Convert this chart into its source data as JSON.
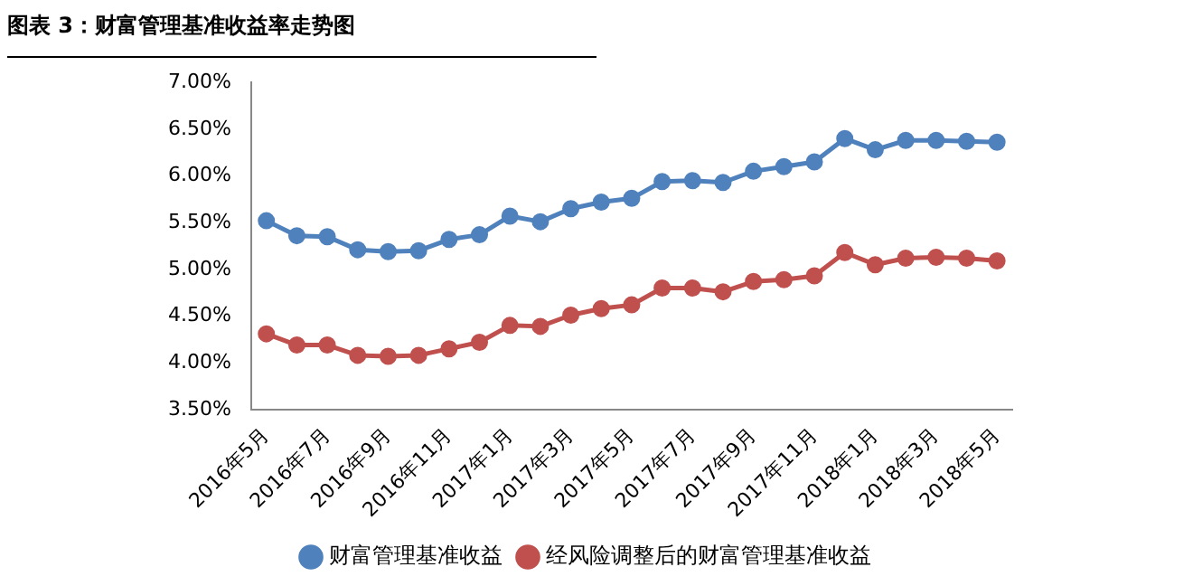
{
  "chart_data": {
    "type": "line",
    "title": "图表 3：财富管理基准收益率走势图",
    "categories": [
      "2016年5月",
      null,
      "2016年7月",
      null,
      "2016年9月",
      null,
      "2016年11月",
      null,
      "2017年1月",
      null,
      "2017年3月",
      null,
      "2017年5月",
      null,
      "2017年7月",
      null,
      "2017年9月",
      null,
      "2017年11月",
      null,
      "2018年1月",
      null,
      "2018年3月",
      null,
      "2018年5月"
    ],
    "series": [
      {
        "name": "财富管理基准收益",
        "color": "#4f81bd",
        "values": [
          5.52,
          5.36,
          5.35,
          5.21,
          5.19,
          5.2,
          5.32,
          5.37,
          5.57,
          5.51,
          5.65,
          5.72,
          5.76,
          5.94,
          5.95,
          5.93,
          6.05,
          6.1,
          6.15,
          6.4,
          6.28,
          6.38,
          6.38,
          6.37,
          6.36
        ]
      },
      {
        "name": "经风险调整后的财富管理基准收益",
        "color": "#c0504d",
        "values": [
          4.31,
          4.19,
          4.19,
          4.08,
          4.07,
          4.08,
          4.15,
          4.22,
          4.4,
          4.39,
          4.51,
          4.58,
          4.62,
          4.8,
          4.8,
          4.76,
          4.87,
          4.89,
          4.93,
          5.18,
          5.05,
          5.12,
          5.13,
          5.12,
          5.09
        ]
      }
    ],
    "ylim": [
      3.5,
      7
    ],
    "yticks": [
      {
        "value": 3.5,
        "label": "3.50%"
      },
      {
        "value": 4,
        "label": "4.00%"
      },
      {
        "value": 4.5,
        "label": "4.50%"
      },
      {
        "value": 5,
        "label": "5.00%"
      },
      {
        "value": 5.5,
        "label": "5.50%"
      },
      {
        "value": 6,
        "label": "6.00%"
      },
      {
        "value": 6.5,
        "label": "6.50%"
      },
      {
        "value": 7,
        "label": "7.00%"
      }
    ],
    "grid": false,
    "legend": "bottom",
    "marker": "circle",
    "line_style": "solid"
  }
}
